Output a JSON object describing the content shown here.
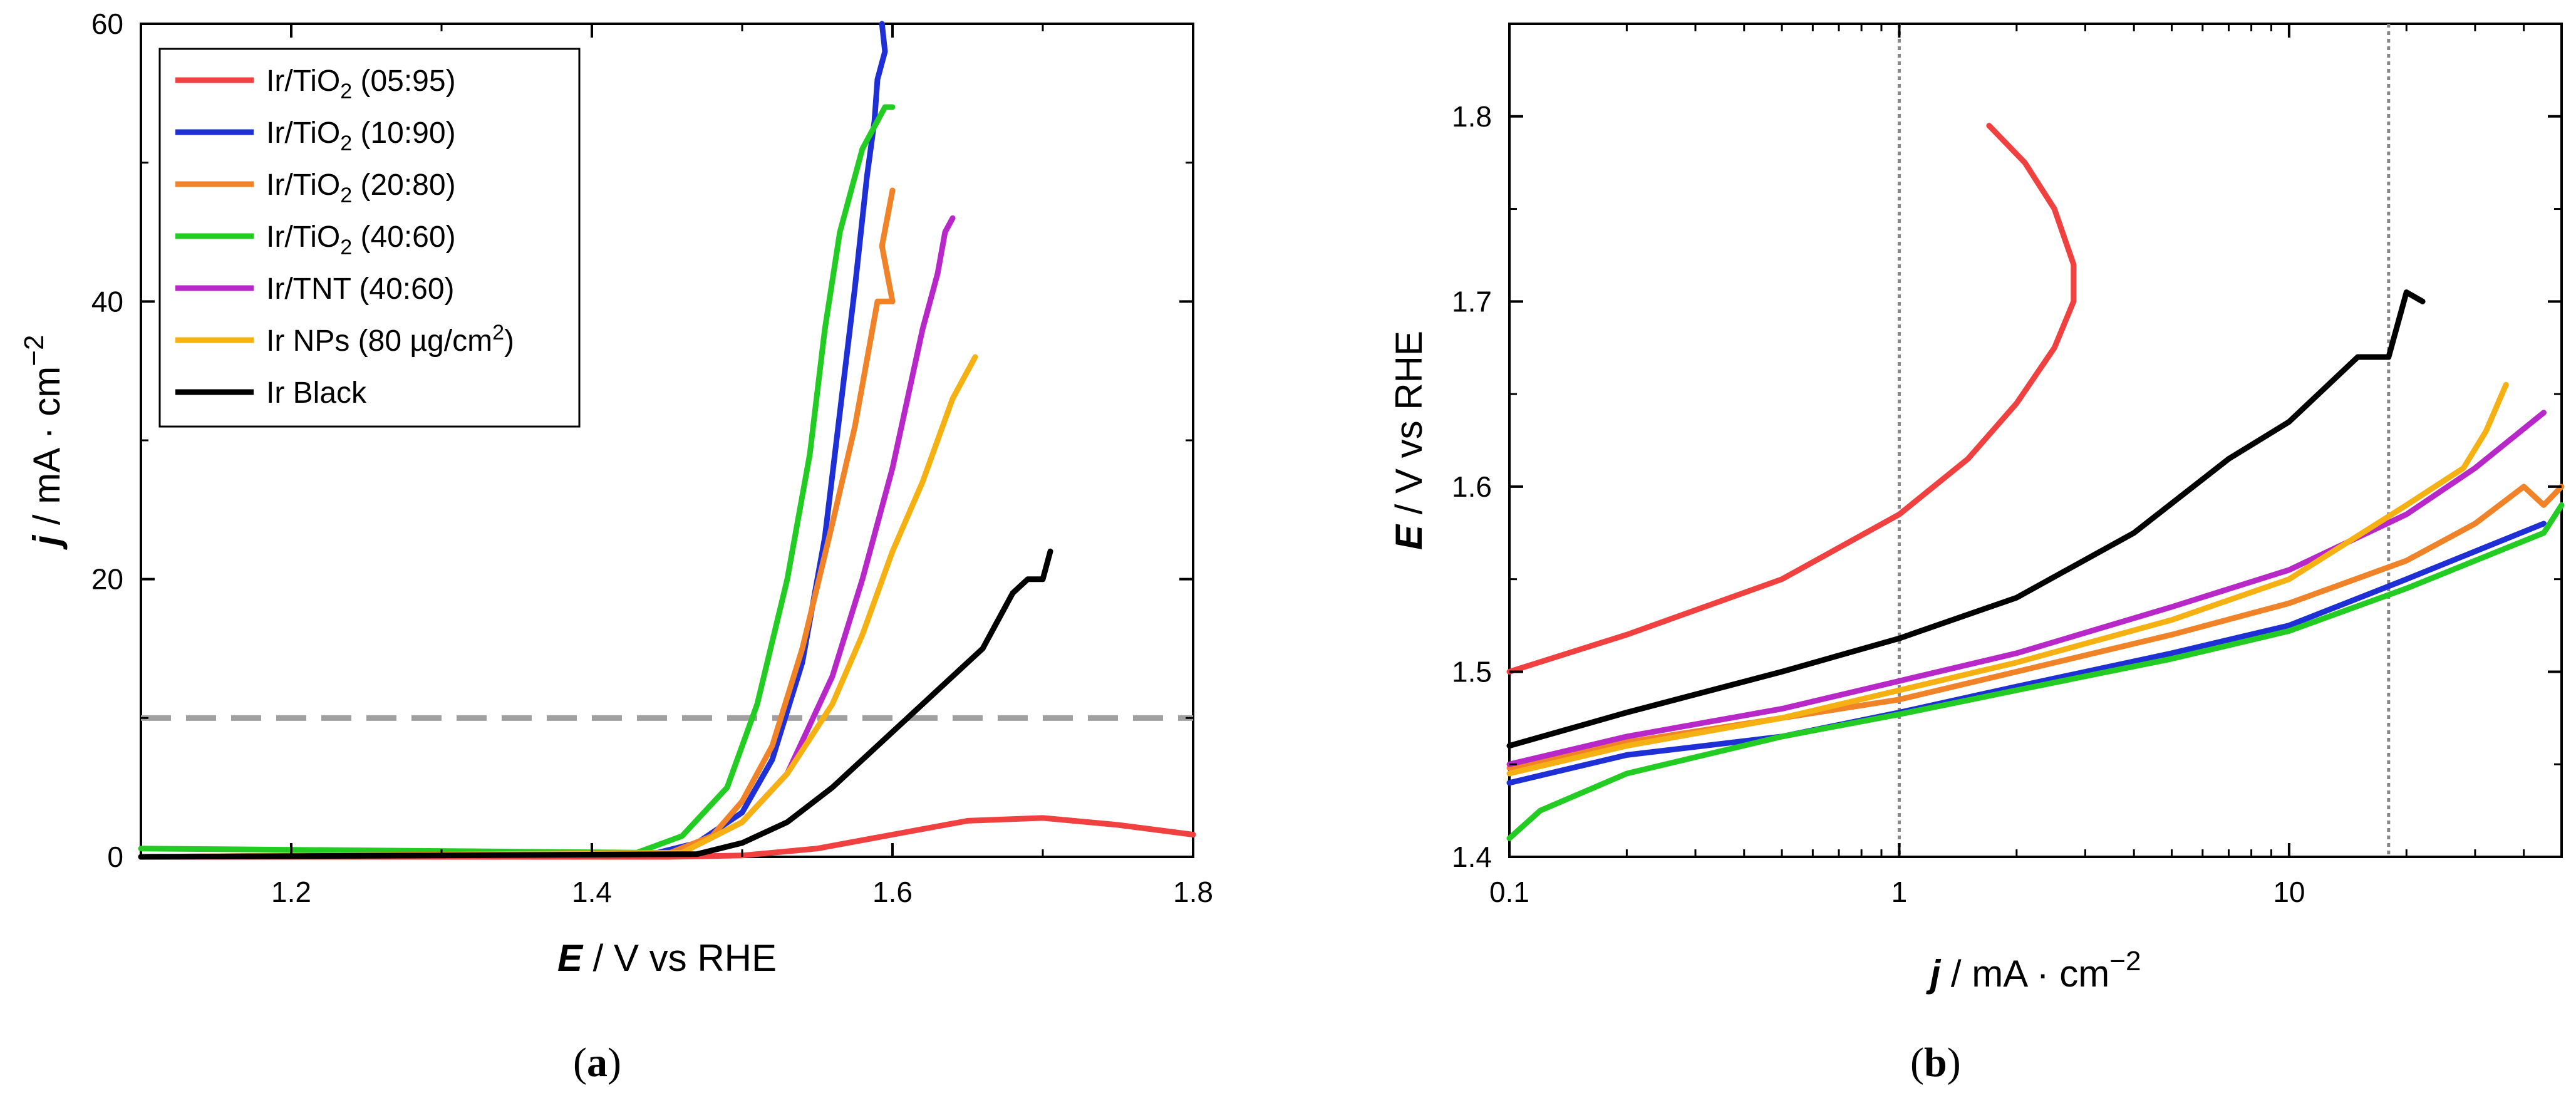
{
  "colors": {
    "ir_tio2_05_95": "#f04040",
    "ir_tio2_10_90": "#1f2fd6",
    "ir_tio2_20_80": "#f08228",
    "ir_tio2_40_60": "#22cc22",
    "ir_tnt_40_60": "#b828c8",
    "ir_nps": "#f5b012",
    "ir_black": "#000000",
    "ref_dash": "#a0a0a0",
    "ref_dot": "#888888"
  },
  "panels": {
    "a": {
      "label": "(a)",
      "label_letter": "a"
    },
    "b": {
      "label": "(b)",
      "label_letter": "b"
    }
  },
  "chart_data": [
    {
      "id": "a",
      "type": "line",
      "title": "",
      "xlabel": "E / V vs RHE",
      "xlabel_symbol": "E",
      "xlabel_rest": " / V vs RHE",
      "ylabel": "j / mA · cm−2",
      "ylabel_symbol": "j",
      "ylabel_rest": " / mA · cm",
      "ylabel_sup": "−2",
      "xlim": [
        1.1,
        1.8
      ],
      "ylim": [
        0,
        60
      ],
      "xticks": [
        1.2,
        1.4,
        1.6,
        1.8
      ],
      "xtick_labels": [
        "1.2",
        "1.4",
        "1.6",
        "1.8"
      ],
      "yticks": [
        0,
        20,
        40,
        60
      ],
      "ytick_labels": [
        "0",
        "20",
        "40",
        "60"
      ],
      "legend_position": "top-left",
      "reference_line": {
        "axis": "y",
        "value": 10,
        "style": "dashed"
      },
      "series": [
        {
          "key": "ir_tio2_05_95",
          "name": "Ir/TiO2 (05:95)",
          "label_main": "Ir/TiO",
          "label_sub": "2",
          "label_tail": " (05:95)",
          "x": [
            1.1,
            1.45,
            1.5,
            1.55,
            1.6,
            1.65,
            1.7,
            1.75,
            1.8
          ],
          "y": [
            0,
            0,
            0.1,
            0.6,
            1.6,
            2.6,
            2.8,
            2.3,
            1.6
          ]
        },
        {
          "key": "ir_tio2_10_90",
          "name": "Ir/TiO2 (10:90)",
          "label_main": "Ir/TiO",
          "label_sub": "2",
          "label_tail": " (10:90)",
          "x": [
            1.1,
            1.44,
            1.47,
            1.5,
            1.52,
            1.54,
            1.555,
            1.565,
            1.575,
            1.583,
            1.588,
            1.59,
            1.595,
            1.593
          ],
          "y": [
            0,
            0.2,
            1,
            3.2,
            7,
            14,
            23,
            32,
            41,
            49,
            53,
            56,
            58,
            60
          ]
        },
        {
          "key": "ir_tio2_20_80",
          "name": "Ir/TiO2 (20:80)",
          "label_main": "Ir/TiO",
          "label_sub": "2",
          "label_tail": " (20:80)",
          "x": [
            1.1,
            1.45,
            1.48,
            1.5,
            1.52,
            1.54,
            1.56,
            1.575,
            1.585,
            1.59,
            1.6,
            1.593,
            1.6
          ],
          "y": [
            0,
            0.2,
            1.5,
            4,
            8,
            15,
            24,
            31,
            37,
            40,
            40,
            44,
            48
          ]
        },
        {
          "key": "ir_tio2_40_60",
          "name": "Ir/TiO2 (40:60)",
          "label_main": "Ir/TiO",
          "label_sub": "2",
          "label_tail": " (40:60)",
          "x": [
            1.1,
            1.43,
            1.46,
            1.49,
            1.51,
            1.53,
            1.545,
            1.555,
            1.565,
            1.575,
            1.58,
            1.59,
            1.595,
            1.6
          ],
          "y": [
            0.6,
            0.3,
            1.5,
            5,
            11,
            20,
            29,
            38,
            45,
            49,
            51,
            53,
            54,
            54
          ]
        },
        {
          "key": "ir_tnt_40_60",
          "name": "Ir/TNT (40:60)",
          "label_main": "Ir/TNT (40:60)",
          "label_sub": "",
          "label_tail": "",
          "x": [
            1.1,
            1.46,
            1.5,
            1.53,
            1.56,
            1.58,
            1.6,
            1.61,
            1.62,
            1.63,
            1.635,
            1.64
          ],
          "y": [
            0,
            0.3,
            2.5,
            6,
            13,
            20,
            28,
            33,
            38,
            42,
            45,
            46
          ]
        },
        {
          "key": "ir_nps",
          "name": "Ir NPs (80 µg/cm2)",
          "label_main": "Ir NPs (80 µg/cm",
          "label_sub": "",
          "label_sup": "2",
          "label_tail": ")",
          "x": [
            1.1,
            1.46,
            1.5,
            1.53,
            1.56,
            1.58,
            1.6,
            1.62,
            1.63,
            1.64,
            1.65,
            1.655
          ],
          "y": [
            0,
            0.3,
            2.5,
            6,
            11,
            16,
            22,
            27,
            30,
            33,
            35,
            36
          ]
        },
        {
          "key": "ir_black",
          "name": "Ir Black",
          "label_main": "Ir Black",
          "label_sub": "",
          "label_tail": "",
          "x": [
            1.1,
            1.47,
            1.5,
            1.53,
            1.56,
            1.59,
            1.62,
            1.64,
            1.66,
            1.67,
            1.68,
            1.69,
            1.7,
            1.705
          ],
          "y": [
            0,
            0.2,
            1,
            2.5,
            5,
            8,
            11,
            13,
            15,
            17,
            19,
            20,
            20,
            22
          ]
        }
      ]
    },
    {
      "id": "b",
      "type": "line",
      "title": "",
      "xscale": "log",
      "xlabel": "j / mA · cm−2",
      "xlabel_symbol": "j",
      "xlabel_rest": " / mA · cm",
      "xlabel_sup": "−2",
      "ylabel": "E / V vs RHE",
      "ylabel_symbol": "E",
      "ylabel_rest": " / V vs RHE",
      "xlim": [
        0.1,
        50
      ],
      "ylim": [
        1.4,
        1.85
      ],
      "xticks": [
        0.1,
        1,
        10
      ],
      "xtick_labels": [
        "0.1",
        "1",
        "10"
      ],
      "yticks": [
        1.4,
        1.5,
        1.6,
        1.7,
        1.8
      ],
      "ytick_labels": [
        "1.4",
        "1.5",
        "1.6",
        "1.7",
        "1.8"
      ],
      "reference_lines": [
        {
          "axis": "x",
          "value": 1,
          "style": "dotted"
        },
        {
          "axis": "x",
          "value": 18,
          "style": "dotted"
        }
      ],
      "series": [
        {
          "key": "ir_tio2_05_95",
          "name": "Ir/TiO2 (05:95)",
          "x": [
            0.1,
            0.2,
            0.5,
            1,
            1.5,
            2,
            2.5,
            2.8,
            2.8,
            2.5,
            2.1,
            1.7
          ],
          "y": [
            1.5,
            1.52,
            1.55,
            1.585,
            1.615,
            1.645,
            1.675,
            1.7,
            1.72,
            1.75,
            1.775,
            1.795
          ]
        },
        {
          "key": "ir_tio2_10_90",
          "name": "Ir/TiO2 (10:90)",
          "x": [
            0.1,
            0.2,
            0.5,
            1,
            2,
            5,
            10,
            20,
            30,
            45
          ],
          "y": [
            1.44,
            1.455,
            1.465,
            1.478,
            1.492,
            1.51,
            1.525,
            1.55,
            1.565,
            1.58
          ]
        },
        {
          "key": "ir_tio2_20_80",
          "name": "Ir/TiO2 (20:80)",
          "x": [
            0.1,
            0.2,
            0.5,
            1,
            2,
            5,
            10,
            20,
            30,
            40,
            45,
            50
          ],
          "y": [
            1.448,
            1.462,
            1.475,
            1.485,
            1.5,
            1.52,
            1.537,
            1.56,
            1.58,
            1.6,
            1.59,
            1.6
          ]
        },
        {
          "key": "ir_tio2_40_60",
          "name": "Ir/TiO2 (40:60)",
          "x": [
            0.1,
            0.12,
            0.2,
            0.5,
            1,
            2,
            5,
            10,
            20,
            30,
            45,
            50
          ],
          "y": [
            1.41,
            1.425,
            1.445,
            1.465,
            1.477,
            1.49,
            1.507,
            1.522,
            1.545,
            1.56,
            1.575,
            1.59
          ]
        },
        {
          "key": "ir_tnt_40_60",
          "name": "Ir/TNT (40:60)",
          "x": [
            0.1,
            0.2,
            0.5,
            1,
            2,
            5,
            10,
            20,
            30,
            45
          ],
          "y": [
            1.45,
            1.465,
            1.48,
            1.495,
            1.51,
            1.535,
            1.555,
            1.585,
            1.61,
            1.64
          ]
        },
        {
          "key": "ir_nps",
          "name": "Ir NPs (80 µg/cm2)",
          "x": [
            0.1,
            0.2,
            0.5,
            1,
            2,
            5,
            10,
            20,
            28,
            32,
            36
          ],
          "y": [
            1.445,
            1.46,
            1.475,
            1.49,
            1.505,
            1.528,
            1.55,
            1.59,
            1.61,
            1.63,
            1.655
          ]
        },
        {
          "key": "ir_black",
          "name": "Ir Black",
          "x": [
            0.1,
            0.2,
            0.5,
            1,
            2,
            4,
            7,
            10,
            15,
            18,
            20,
            22
          ],
          "y": [
            1.46,
            1.478,
            1.5,
            1.518,
            1.54,
            1.575,
            1.615,
            1.635,
            1.67,
            1.67,
            1.705,
            1.7
          ]
        }
      ]
    }
  ]
}
